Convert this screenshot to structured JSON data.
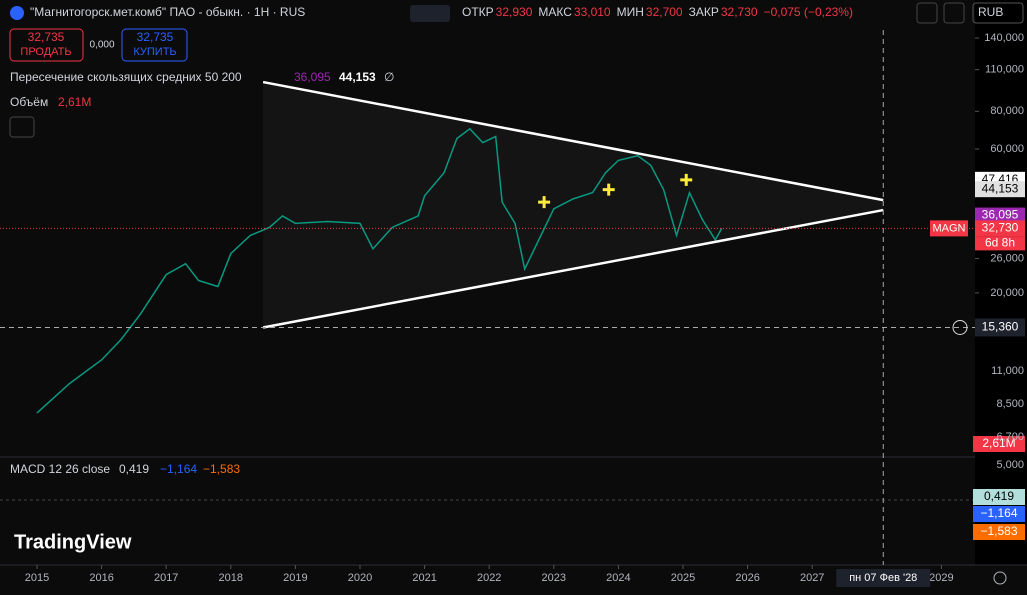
{
  "header": {
    "symbol": "\"Магнитогорск.мет.комб\" ПАО - обыкн. · 1H · RUS",
    "ohlc": [
      {
        "label": "ОТКР",
        "value": "32,930"
      },
      {
        "label": "МАКС",
        "value": "33,010"
      },
      {
        "label": "МИН",
        "value": "32,700"
      },
      {
        "label": "ЗАКР",
        "value": "32,730"
      }
    ],
    "change": "−0,075 (−0,23%)",
    "currency": "RUB"
  },
  "trade": {
    "sell_price": "32,735",
    "sell_label": "ПРОДАТЬ",
    "spread": "0,000",
    "buy_price": "32,735",
    "buy_label": "КУПИТЬ"
  },
  "indicators": {
    "ma": {
      "name": "Пересечение скользящих средних 50 200",
      "v1": "36,095",
      "v2": "44,153",
      "symbol": "∅"
    },
    "volume": {
      "name": "Объём",
      "value": "2,61M"
    },
    "macd": {
      "name": "MACD 12 26 close",
      "v1": "0,419",
      "v2": "−1,164",
      "v3": "−1,583"
    }
  },
  "logo": "TradingView",
  "price_chart": {
    "type": "line",
    "log": true,
    "yticks": [
      {
        "value": 140000,
        "label": "140,000"
      },
      {
        "value": 110000,
        "label": "110,000"
      },
      {
        "value": 80000,
        "label": "80,000"
      },
      {
        "value": 60000,
        "label": "60,000"
      },
      {
        "value": 26000,
        "label": "26,000"
      },
      {
        "value": 20000,
        "label": "20,000"
      }
    ],
    "xticks": [
      2015,
      2016,
      2017,
      2018,
      2019,
      2020,
      2021,
      2022,
      2023,
      2024,
      2025,
      2026,
      2027,
      2029
    ],
    "x": [
      2015.0,
      2015.5,
      2016.0,
      2016.3,
      2016.6,
      2017.0,
      2017.3,
      2017.5,
      2017.8,
      2018.0,
      2018.3,
      2018.6,
      2018.8,
      2019.0,
      2019.5,
      2020.0,
      2020.2,
      2020.5,
      2020.9,
      2021.0,
      2021.3,
      2021.5,
      2021.7,
      2021.9,
      2022.1,
      2022.2,
      2022.4,
      2022.55,
      2022.8,
      2023.0,
      2023.3,
      2023.6,
      2023.8,
      2024.0,
      2024.3,
      2024.5,
      2024.7,
      2024.9,
      2025.1,
      2025.3,
      2025.5,
      2025.6
    ],
    "values": [
      8000,
      10000,
      12000,
      14000,
      17000,
      23000,
      25000,
      22000,
      21000,
      27000,
      31000,
      33000,
      36000,
      34000,
      34500,
      34000,
      28000,
      33000,
      36000,
      42000,
      50000,
      65000,
      70000,
      63000,
      66000,
      40000,
      34000,
      24000,
      31000,
      38000,
      41000,
      43000,
      50000,
      55000,
      57000,
      53000,
      44000,
      31000,
      43000,
      35000,
      30000,
      32730
    ],
    "color": "#089981",
    "trendlines": [
      {
        "x": [
          2018.5,
          2028.1
        ],
        "values": [
          100000,
          40600
        ]
      },
      {
        "x": [
          2018.5,
          2028.1
        ],
        "values": [
          15360,
          37650
        ]
      }
    ],
    "markers": {
      "x": [
        2022.85,
        2023.85,
        2025.05
      ],
      "values": [
        40000,
        44000,
        47416
      ]
    },
    "price_labels": [
      {
        "value": 47416,
        "label": "47,416",
        "bg": "#ffffff",
        "fg": "#000000"
      },
      {
        "value": 44153,
        "label": "44,153",
        "bg": "#e0e0e0",
        "fg": "#000000"
      },
      {
        "value": 36095,
        "label": "36,095",
        "bg": "#9c27b0",
        "fg": "#ffffff"
      },
      {
        "value": 32730,
        "label": "32,730",
        "bg": "#f23645",
        "fg": "#ffffff"
      }
    ],
    "ticker": "MAGN",
    "countdown": "6d 8h",
    "crosshair": {
      "value": 15360,
      "label": "15,360",
      "x": 2028.1,
      "x_label": "пн 07 Фев '28"
    }
  },
  "volume_axis": [
    "11,000",
    "8,500",
    "6,700"
  ],
  "macd_axis": "5,000"
}
